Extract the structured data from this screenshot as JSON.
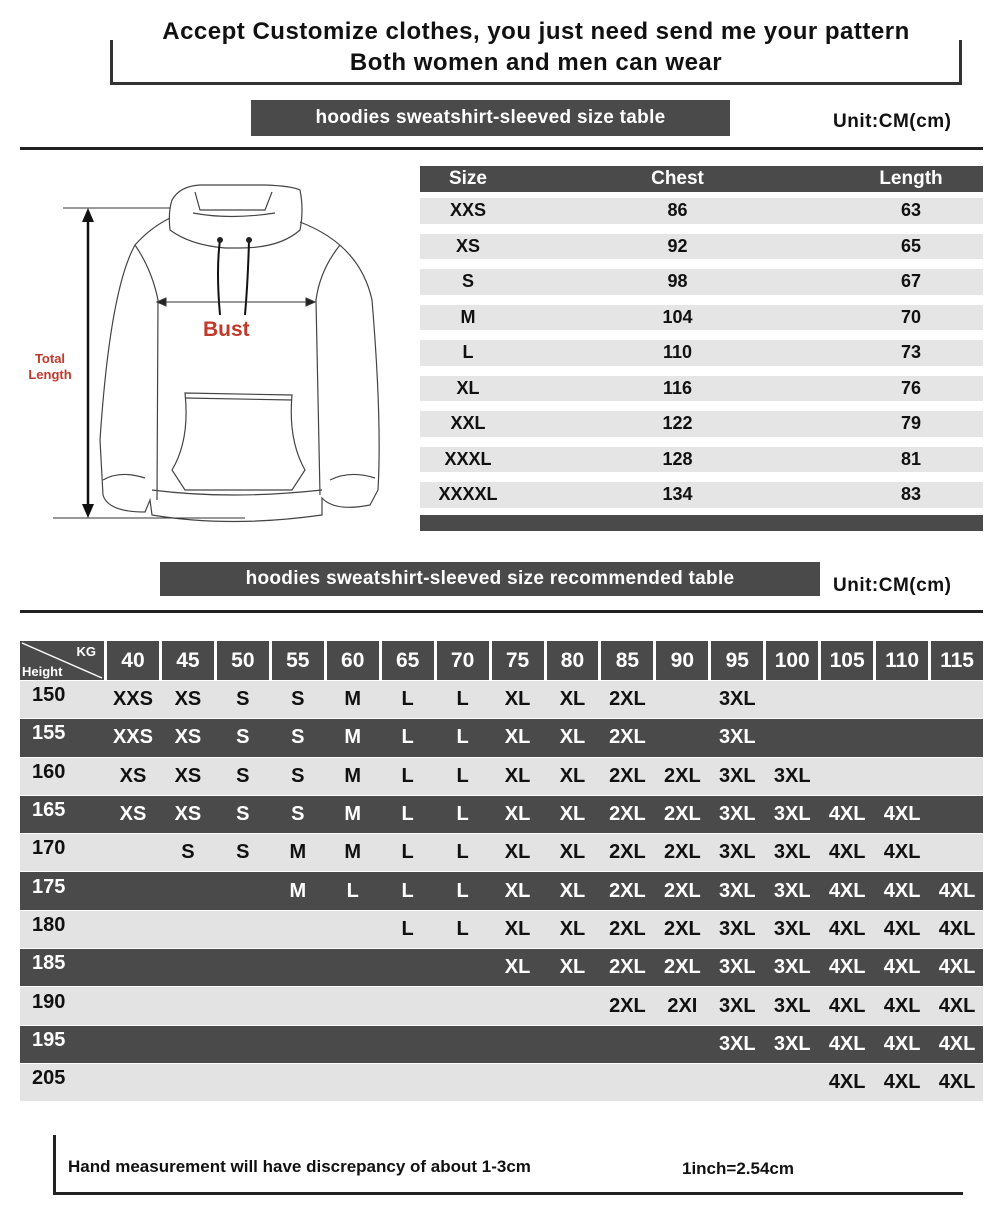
{
  "header": {
    "line1": "Accept Customize clothes, you just need send me your pattern",
    "line2": "Both women and men can wear"
  },
  "size_table": {
    "banner": "hoodies sweatshirt-sleeved size  table",
    "unit": "Unit:CM(cm)",
    "columns": [
      "Size",
      "Chest",
      "Length"
    ],
    "rows": [
      [
        "XXS",
        "86",
        "63"
      ],
      [
        "XS",
        "92",
        "65"
      ],
      [
        "S",
        "98",
        "67"
      ],
      [
        "M",
        "104",
        "70"
      ],
      [
        "L",
        "110",
        "73"
      ],
      [
        "XL",
        "116",
        "76"
      ],
      [
        "XXL",
        "122",
        "79"
      ],
      [
        "XXXL",
        "128",
        "81"
      ],
      [
        "XXXXL",
        "134",
        "83"
      ]
    ]
  },
  "diagram": {
    "bust_label": "Bust",
    "length_label_1": "Total",
    "length_label_2": "Length",
    "label_color": "#c0392b"
  },
  "recommend_table": {
    "banner": "hoodies sweatshirt-sleeved size recommended table",
    "unit": "Unit:CM(cm)",
    "corner_top": "KG",
    "corner_bottom": "Height",
    "weights": [
      "40",
      "45",
      "50",
      "55",
      "60",
      "65",
      "70",
      "75",
      "80",
      "85",
      "90",
      "95",
      "100",
      "105",
      "110",
      "115"
    ],
    "rows": [
      {
        "height": "150",
        "sizes": [
          "XXS",
          "XS",
          "S",
          "S",
          "M",
          "L",
          "L",
          "XL",
          "XL",
          "2XL",
          "",
          "3XL",
          "",
          "",
          "",
          ""
        ]
      },
      {
        "height": "155",
        "sizes": [
          "XXS",
          "XS",
          "S",
          "S",
          "M",
          "L",
          "L",
          "XL",
          "XL",
          "2XL",
          "",
          "3XL",
          "",
          "",
          "",
          ""
        ]
      },
      {
        "height": "160",
        "sizes": [
          "XS",
          "XS",
          "S",
          "S",
          "M",
          "L",
          "L",
          "XL",
          "XL",
          "2XL",
          "2XL",
          "3XL",
          "3XL",
          "",
          "",
          ""
        ]
      },
      {
        "height": "165",
        "sizes": [
          "XS",
          "XS",
          "S",
          "S",
          "M",
          "L",
          "L",
          "XL",
          "XL",
          "2XL",
          "2XL",
          "3XL",
          "3XL",
          "4XL",
          "4XL",
          ""
        ]
      },
      {
        "height": "170",
        "sizes": [
          "",
          "S",
          "S",
          "M",
          "M",
          "L",
          "L",
          "XL",
          "XL",
          "2XL",
          "2XL",
          "3XL",
          "3XL",
          "4XL",
          "4XL",
          ""
        ]
      },
      {
        "height": "175",
        "sizes": [
          "",
          "",
          "",
          "M",
          "L",
          "L",
          "L",
          "XL",
          "XL",
          "2XL",
          "2XL",
          "3XL",
          "3XL",
          "4XL",
          "4XL",
          "4XL"
        ]
      },
      {
        "height": "180",
        "sizes": [
          "",
          "",
          "",
          "",
          "",
          "L",
          "L",
          "XL",
          "XL",
          "2XL",
          "2XL",
          "3XL",
          "3XL",
          "4XL",
          "4XL",
          "4XL"
        ]
      },
      {
        "height": "185",
        "sizes": [
          "",
          "",
          "",
          "",
          "",
          "",
          "",
          "XL",
          "XL",
          "2XL",
          "2XL",
          "3XL",
          "3XL",
          "4XL",
          "4XL",
          "4XL"
        ]
      },
      {
        "height": "190",
        "sizes": [
          "",
          "",
          "",
          "",
          "",
          "",
          "",
          "",
          "",
          "2XL",
          "2XI",
          "3XL",
          "3XL",
          "4XL",
          "4XL",
          "4XL"
        ]
      },
      {
        "height": "195",
        "sizes": [
          "",
          "",
          "",
          "",
          "",
          "",
          "",
          "",
          "",
          "",
          "",
          "3XL",
          "3XL",
          "4XL",
          "4XL",
          "4XL"
        ]
      },
      {
        "height": "205",
        "sizes": [
          "",
          "",
          "",
          "",
          "",
          "",
          "",
          "",
          "",
          "",
          "",
          "",
          "",
          "4XL",
          "4XL",
          "4XL"
        ]
      }
    ]
  },
  "footer": {
    "note": "Hand measurement will have discrepancy of about  1-3cm",
    "conversion": "1inch=2.54cm"
  }
}
